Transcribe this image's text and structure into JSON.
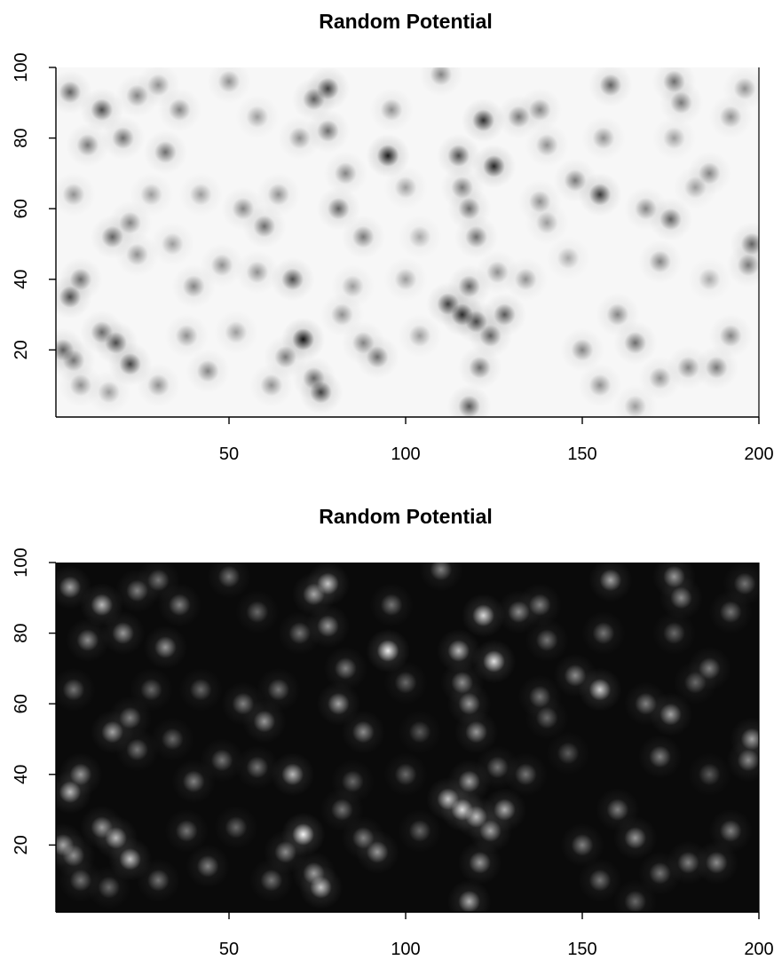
{
  "chart_data": [
    {
      "type": "heatmap",
      "title": "Random Potential",
      "xlabel": "",
      "ylabel": "",
      "xlim": [
        1,
        200
      ],
      "ylim": [
        1,
        100
      ],
      "x_ticks": [
        "50",
        "100",
        "150",
        "200"
      ],
      "y_ticks": [
        "20",
        "40",
        "60",
        "80",
        "100"
      ],
      "colormap": "gray-reversed",
      "colors": {
        "background": "#f7f7f7",
        "peak": "#000000"
      },
      "blobs": [
        {
          "x": 71,
          "y": 23,
          "v": 1.0
        },
        {
          "x": 95,
          "y": 75,
          "v": 0.95
        },
        {
          "x": 125,
          "y": 72,
          "v": 0.9
        },
        {
          "x": 122,
          "y": 85,
          "v": 0.85
        },
        {
          "x": 155,
          "y": 64,
          "v": 0.8
        },
        {
          "x": 116,
          "y": 30,
          "v": 0.85
        },
        {
          "x": 112,
          "y": 33,
          "v": 0.75
        },
        {
          "x": 120,
          "y": 28,
          "v": 0.7
        },
        {
          "x": 118,
          "y": 38,
          "v": 0.6
        },
        {
          "x": 128,
          "y": 30,
          "v": 0.65
        },
        {
          "x": 124,
          "y": 24,
          "v": 0.6
        },
        {
          "x": 76,
          "y": 8,
          "v": 0.75
        },
        {
          "x": 74,
          "y": 12,
          "v": 0.55
        },
        {
          "x": 78,
          "y": 94,
          "v": 0.75
        },
        {
          "x": 74,
          "y": 91,
          "v": 0.6
        },
        {
          "x": 5,
          "y": 35,
          "v": 0.7
        },
        {
          "x": 8,
          "y": 40,
          "v": 0.55
        },
        {
          "x": 3,
          "y": 20,
          "v": 0.6
        },
        {
          "x": 6,
          "y": 17,
          "v": 0.5
        },
        {
          "x": 22,
          "y": 16,
          "v": 0.75
        },
        {
          "x": 18,
          "y": 22,
          "v": 0.7
        },
        {
          "x": 14,
          "y": 25,
          "v": 0.55
        },
        {
          "x": 14,
          "y": 88,
          "v": 0.7
        },
        {
          "x": 5,
          "y": 93,
          "v": 0.6
        },
        {
          "x": 20,
          "y": 80,
          "v": 0.55
        },
        {
          "x": 10,
          "y": 78,
          "v": 0.5
        },
        {
          "x": 24,
          "y": 92,
          "v": 0.45
        },
        {
          "x": 32,
          "y": 76,
          "v": 0.55
        },
        {
          "x": 36,
          "y": 88,
          "v": 0.45
        },
        {
          "x": 30,
          "y": 95,
          "v": 0.4
        },
        {
          "x": 17,
          "y": 52,
          "v": 0.6
        },
        {
          "x": 22,
          "y": 56,
          "v": 0.45
        },
        {
          "x": 24,
          "y": 47,
          "v": 0.4
        },
        {
          "x": 68,
          "y": 40,
          "v": 0.7
        },
        {
          "x": 81,
          "y": 60,
          "v": 0.6
        },
        {
          "x": 78,
          "y": 82,
          "v": 0.55
        },
        {
          "x": 83,
          "y": 70,
          "v": 0.45
        },
        {
          "x": 88,
          "y": 52,
          "v": 0.5
        },
        {
          "x": 92,
          "y": 18,
          "v": 0.55
        },
        {
          "x": 88,
          "y": 22,
          "v": 0.45
        },
        {
          "x": 115,
          "y": 75,
          "v": 0.7
        },
        {
          "x": 118,
          "y": 60,
          "v": 0.55
        },
        {
          "x": 120,
          "y": 52,
          "v": 0.55
        },
        {
          "x": 116,
          "y": 66,
          "v": 0.5
        },
        {
          "x": 121,
          "y": 15,
          "v": 0.55
        },
        {
          "x": 118,
          "y": 4,
          "v": 0.65
        },
        {
          "x": 132,
          "y": 86,
          "v": 0.5
        },
        {
          "x": 138,
          "y": 88,
          "v": 0.45
        },
        {
          "x": 110,
          "y": 98,
          "v": 0.45
        },
        {
          "x": 158,
          "y": 95,
          "v": 0.6
        },
        {
          "x": 176,
          "y": 96,
          "v": 0.55
        },
        {
          "x": 178,
          "y": 90,
          "v": 0.5
        },
        {
          "x": 175,
          "y": 57,
          "v": 0.6
        },
        {
          "x": 168,
          "y": 60,
          "v": 0.45
        },
        {
          "x": 198,
          "y": 50,
          "v": 0.6
        },
        {
          "x": 197,
          "y": 44,
          "v": 0.5
        },
        {
          "x": 165,
          "y": 22,
          "v": 0.55
        },
        {
          "x": 160,
          "y": 30,
          "v": 0.45
        },
        {
          "x": 188,
          "y": 15,
          "v": 0.5
        },
        {
          "x": 180,
          "y": 15,
          "v": 0.45
        },
        {
          "x": 192,
          "y": 24,
          "v": 0.45
        },
        {
          "x": 150,
          "y": 20,
          "v": 0.45
        },
        {
          "x": 148,
          "y": 68,
          "v": 0.5
        },
        {
          "x": 60,
          "y": 55,
          "v": 0.55
        },
        {
          "x": 54,
          "y": 60,
          "v": 0.45
        },
        {
          "x": 58,
          "y": 42,
          "v": 0.4
        },
        {
          "x": 48,
          "y": 44,
          "v": 0.4
        },
        {
          "x": 40,
          "y": 38,
          "v": 0.45
        },
        {
          "x": 38,
          "y": 24,
          "v": 0.4
        },
        {
          "x": 44,
          "y": 14,
          "v": 0.45
        },
        {
          "x": 52,
          "y": 25,
          "v": 0.35
        },
        {
          "x": 30,
          "y": 10,
          "v": 0.4
        },
        {
          "x": 8,
          "y": 10,
          "v": 0.4
        },
        {
          "x": 16,
          "y": 8,
          "v": 0.35
        },
        {
          "x": 62,
          "y": 10,
          "v": 0.4
        },
        {
          "x": 66,
          "y": 18,
          "v": 0.5
        },
        {
          "x": 82,
          "y": 30,
          "v": 0.4
        },
        {
          "x": 100,
          "y": 40,
          "v": 0.35
        },
        {
          "x": 104,
          "y": 24,
          "v": 0.35
        },
        {
          "x": 100,
          "y": 66,
          "v": 0.35
        },
        {
          "x": 96,
          "y": 88,
          "v": 0.4
        },
        {
          "x": 70,
          "y": 80,
          "v": 0.4
        },
        {
          "x": 64,
          "y": 64,
          "v": 0.4
        },
        {
          "x": 58,
          "y": 86,
          "v": 0.35
        },
        {
          "x": 50,
          "y": 96,
          "v": 0.4
        },
        {
          "x": 42,
          "y": 64,
          "v": 0.35
        },
        {
          "x": 6,
          "y": 64,
          "v": 0.4
        },
        {
          "x": 138,
          "y": 62,
          "v": 0.4
        },
        {
          "x": 134,
          "y": 40,
          "v": 0.4
        },
        {
          "x": 140,
          "y": 56,
          "v": 0.35
        },
        {
          "x": 156,
          "y": 80,
          "v": 0.4
        },
        {
          "x": 186,
          "y": 70,
          "v": 0.45
        },
        {
          "x": 192,
          "y": 86,
          "v": 0.4
        },
        {
          "x": 196,
          "y": 94,
          "v": 0.4
        },
        {
          "x": 172,
          "y": 45,
          "v": 0.45
        },
        {
          "x": 155,
          "y": 10,
          "v": 0.4
        },
        {
          "x": 172,
          "y": 12,
          "v": 0.4
        },
        {
          "x": 165,
          "y": 4,
          "v": 0.35
        },
        {
          "x": 176,
          "y": 80,
          "v": 0.35
        },
        {
          "x": 104,
          "y": 52,
          "v": 0.3
        },
        {
          "x": 85,
          "y": 38,
          "v": 0.35
        },
        {
          "x": 28,
          "y": 64,
          "v": 0.35
        },
        {
          "x": 34,
          "y": 50,
          "v": 0.35
        },
        {
          "x": 126,
          "y": 42,
          "v": 0.4
        },
        {
          "x": 140,
          "y": 78,
          "v": 0.4
        },
        {
          "x": 146,
          "y": 46,
          "v": 0.3
        },
        {
          "x": 186,
          "y": 40,
          "v": 0.3
        },
        {
          "x": 182,
          "y": 66,
          "v": 0.35
        }
      ]
    },
    {
      "type": "heatmap",
      "title": "Random Potential",
      "xlabel": "",
      "ylabel": "",
      "xlim": [
        1,
        200
      ],
      "ylim": [
        1,
        100
      ],
      "x_ticks": [
        "50",
        "100",
        "150",
        "200"
      ],
      "y_ticks": [
        "20",
        "40",
        "60",
        "80",
        "100"
      ],
      "colormap": "gray",
      "colors": {
        "background": "#0a0a0a",
        "peak": "#ffffff"
      },
      "same_field_as": 0
    }
  ]
}
